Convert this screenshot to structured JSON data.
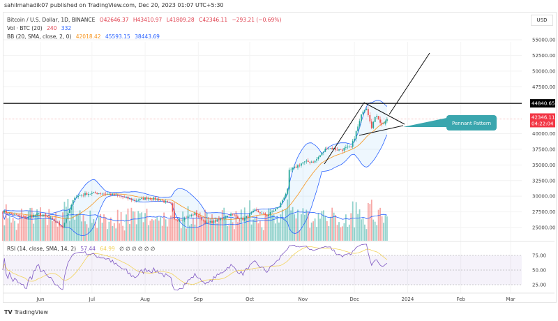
{
  "publisher": "sahilmahadik07 published on TradingView.com, Dec 20, 2023 01:07 UTC+5:30",
  "legend": {
    "symbol": "Bitcoin / U.S. Dollar, 1D, BINANCE",
    "open": "O42646.37",
    "high": "H43410.97",
    "low": "L41809.28",
    "close": "C42346.11",
    "change": "−293.21 (−0.69%)",
    "vol_label": "Vol · BTC (20)",
    "vol_value": "240",
    "vol_ma": "332",
    "bb_label": "BB (20, SMA, close, 2, 0)",
    "bb_basis": "42018.42",
    "bb_upper": "45593.15",
    "bb_lower": "38443.69",
    "rsi_label": "RSI (14, close, SMA, 14, 2)",
    "rsi_value": "57.44",
    "rsi_ma": "64.99",
    "rsi_extra": "∅ ∅ ∅ ∅ ∅ ∅"
  },
  "currency": "USD",
  "price_axis": [
    "55000.00",
    "52500.00",
    "50000.00",
    "47500.00",
    "40000.00",
    "37500.00",
    "35000.00",
    "32500.00",
    "30000.00",
    "27500.00",
    "25000.00"
  ],
  "rsi_axis": [
    "75.00",
    "50.00",
    "25.00"
  ],
  "time_axis": [
    "Jun",
    "Jul",
    "Aug",
    "Sep",
    "Oct",
    "Nov",
    "Dec",
    "2024",
    "Feb",
    "Mar"
  ],
  "horizontal_line_label": "44840.65",
  "current_price_label": "42346.11",
  "countdown_label": "04:22:04",
  "callout_text": "Pennant Pattern",
  "brand": "TradingView",
  "colors": {
    "up": "#26a69a",
    "down": "#ef5350",
    "bb": "#2962ff",
    "basis": "#f7931a",
    "rsi": "#7e57c2",
    "rsi_ma": "#f2d35b",
    "callout": "#3aa6ae"
  },
  "chart_data": {
    "type": "candlestick",
    "interval": "1D",
    "price_range": [
      22500,
      57500
    ],
    "weekly_closes": [
      [
        "2023-05-10",
        27600
      ],
      [
        "2023-05-17",
        27000
      ],
      [
        "2023-05-24",
        26500
      ],
      [
        "2023-05-31",
        27200
      ],
      [
        "2023-06-07",
        26400
      ],
      [
        "2023-06-14",
        25100
      ],
      [
        "2023-06-21",
        29900
      ],
      [
        "2023-06-28",
        30400
      ],
      [
        "2023-07-05",
        30500
      ],
      [
        "2023-07-12",
        30300
      ],
      [
        "2023-07-19",
        29900
      ],
      [
        "2023-07-26",
        29300
      ],
      [
        "2023-08-02",
        29700
      ],
      [
        "2023-08-09",
        29500
      ],
      [
        "2023-08-16",
        28700
      ],
      [
        "2023-08-18",
        26200
      ],
      [
        "2023-08-23",
        26400
      ],
      [
        "2023-08-30",
        27200
      ],
      [
        "2023-09-06",
        25700
      ],
      [
        "2023-09-13",
        26200
      ],
      [
        "2023-09-20",
        27100
      ],
      [
        "2023-09-27",
        26300
      ],
      [
        "2023-10-04",
        27700
      ],
      [
        "2023-10-11",
        26900
      ],
      [
        "2023-10-18",
        28300
      ],
      [
        "2023-10-23",
        31000
      ],
      [
        "2023-10-24",
        34000
      ],
      [
        "2023-11-01",
        35400
      ],
      [
        "2023-11-08",
        35600
      ],
      [
        "2023-11-15",
        37800
      ],
      [
        "2023-11-22",
        37400
      ],
      [
        "2023-11-29",
        37800
      ],
      [
        "2023-12-04",
        41900
      ],
      [
        "2023-12-06",
        43800
      ],
      [
        "2023-12-08",
        44200
      ],
      [
        "2023-12-11",
        41200
      ],
      [
        "2023-12-14",
        43000
      ],
      [
        "2023-12-17",
        41400
      ],
      [
        "2023-12-20",
        42346.11
      ]
    ],
    "horizontal_level": 44840.65,
    "rsi_levels": [
      75,
      50,
      25
    ]
  }
}
